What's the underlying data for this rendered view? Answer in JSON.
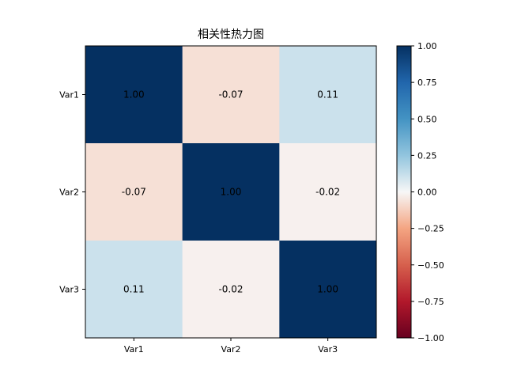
{
  "chart_data": {
    "type": "heatmap",
    "title": "相关性热力图",
    "row_labels": [
      "Var1",
      "Var2",
      "Var3"
    ],
    "col_labels": [
      "Var1",
      "Var2",
      "Var3"
    ],
    "values": [
      [
        1.0,
        -0.07,
        0.11
      ],
      [
        -0.07,
        1.0,
        -0.02
      ],
      [
        0.11,
        -0.02,
        1.0
      ]
    ],
    "cell_text": [
      [
        "1.00",
        "-0.07",
        "0.11"
      ],
      [
        "-0.07",
        "1.00",
        "-0.02"
      ],
      [
        "0.11",
        "-0.02",
        "1.00"
      ]
    ],
    "colormap": "RdBu",
    "vmin": -1.0,
    "vmax": 1.0,
    "colorbar_ticks": [
      1.0,
      0.75,
      0.5,
      0.25,
      0.0,
      -0.25,
      -0.5,
      -0.75,
      -1.0
    ],
    "colorbar_tick_labels": [
      "1.00",
      "0.75",
      "0.50",
      "0.25",
      "0.00",
      "−0.25",
      "−0.50",
      "−0.75",
      "−1.00"
    ],
    "legend_position": "right",
    "grid": false
  }
}
